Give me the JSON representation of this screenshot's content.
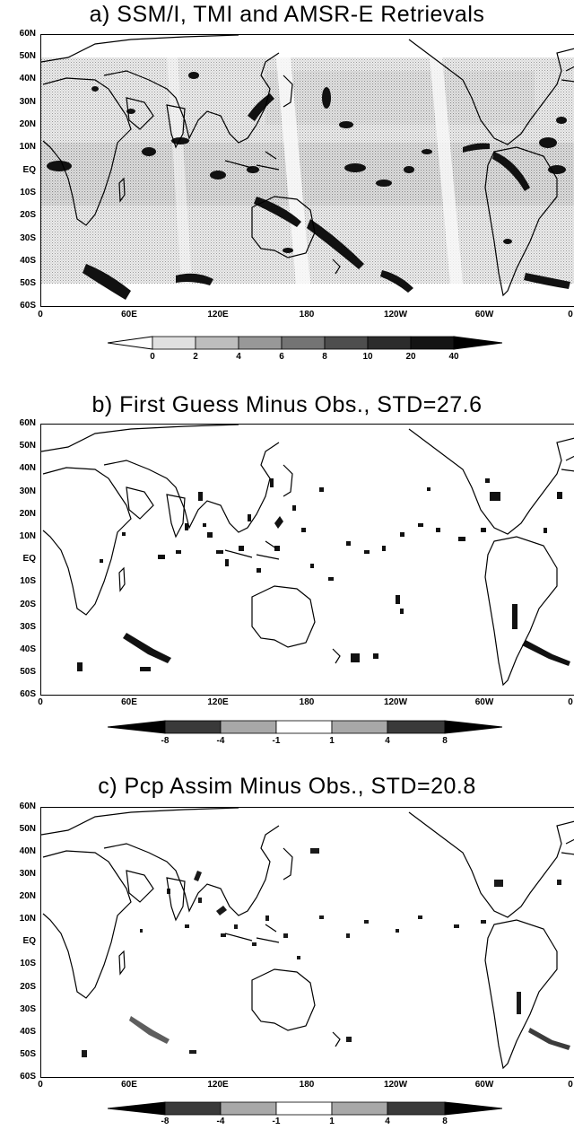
{
  "panels": [
    {
      "title": "a) SSM/I, TMI and AMSR-E Retrievals",
      "lat_labels": [
        "60N",
        "50N",
        "40N",
        "30N",
        "20N",
        "10N",
        "EQ",
        "10S",
        "20S",
        "30S",
        "40S",
        "50S",
        "60S"
      ],
      "lon_labels": [
        "0",
        "60E",
        "120E",
        "180",
        "120W",
        "60W",
        "0"
      ],
      "colorbar": {
        "type": "sequential",
        "labels": [
          "0",
          "2",
          "4",
          "6",
          "8",
          "10",
          "20",
          "40"
        ],
        "colors": [
          "#ffffff",
          "#e0e0e0",
          "#bdbdbd",
          "#989898",
          "#747474",
          "#4e4e4e",
          "#2c2c2c",
          "#141414",
          "#000000"
        ]
      }
    },
    {
      "title": "b) First Guess Minus Obs., STD=27.6",
      "lat_labels": [
        "60N",
        "50N",
        "40N",
        "30N",
        "20N",
        "10N",
        "EQ",
        "10S",
        "20S",
        "30S",
        "40S",
        "50S",
        "60S"
      ],
      "lon_labels": [
        "0",
        "60E",
        "120E",
        "180",
        "120W",
        "60W",
        "0"
      ],
      "colorbar": {
        "type": "diverging",
        "labels": [
          "-8",
          "-4",
          "-1",
          "1",
          "4",
          "8"
        ],
        "colors": [
          "#000000",
          "#3a3a3a",
          "#6c6c6c",
          "#a8a8a8",
          "#ffffff",
          "#a8a8a8",
          "#6c6c6c",
          "#3a3a3a",
          "#000000"
        ]
      }
    },
    {
      "title": "c) Pcp Assim Minus Obs., STD=20.8",
      "lat_labels": [
        "60N",
        "50N",
        "40N",
        "30N",
        "20N",
        "10N",
        "EQ",
        "10S",
        "20S",
        "30S",
        "40S",
        "50S",
        "60S"
      ],
      "lon_labels": [
        "0",
        "60E",
        "120E",
        "180",
        "120W",
        "60W",
        "0"
      ],
      "colorbar": {
        "type": "diverging",
        "labels": [
          "-8",
          "-4",
          "-1",
          "1",
          "4",
          "8"
        ],
        "colors": [
          "#000000",
          "#3a3a3a",
          "#6c6c6c",
          "#a8a8a8",
          "#ffffff",
          "#a8a8a8",
          "#6c6c6c",
          "#3a3a3a",
          "#000000"
        ]
      }
    }
  ]
}
